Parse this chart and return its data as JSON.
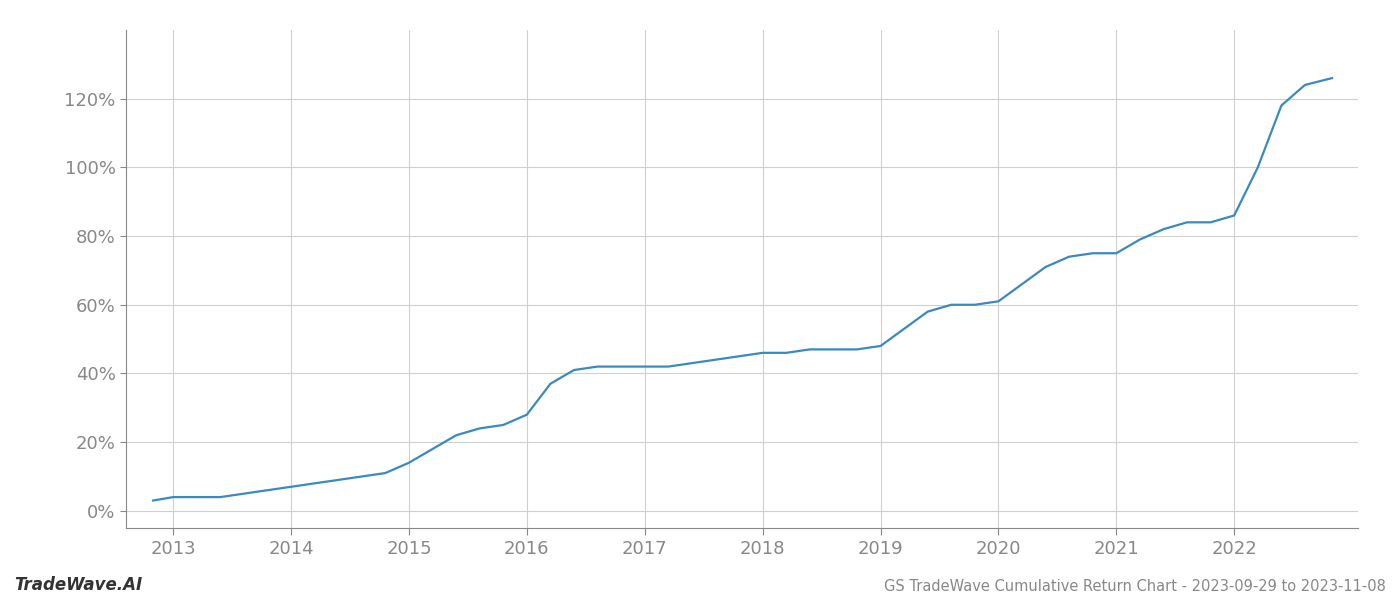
{
  "title": "GS TradeWave Cumulative Return Chart - 2023-09-29 to 2023-11-08",
  "watermark": "TradeWave.AI",
  "line_color": "#3a8abf",
  "background_color": "#ffffff",
  "grid_color": "#d0d0d0",
  "x_years": [
    2013,
    2014,
    2015,
    2016,
    2017,
    2018,
    2019,
    2020,
    2021,
    2022
  ],
  "x_data": [
    2012.83,
    2013.0,
    2013.2,
    2013.4,
    2013.6,
    2013.8,
    2014.0,
    2014.2,
    2014.4,
    2014.6,
    2014.8,
    2015.0,
    2015.2,
    2015.4,
    2015.6,
    2015.8,
    2016.0,
    2016.2,
    2016.4,
    2016.6,
    2016.8,
    2017.0,
    2017.2,
    2017.4,
    2017.6,
    2017.8,
    2018.0,
    2018.2,
    2018.4,
    2018.6,
    2018.8,
    2019.0,
    2019.2,
    2019.4,
    2019.6,
    2019.8,
    2020.0,
    2020.2,
    2020.4,
    2020.6,
    2020.8,
    2021.0,
    2021.2,
    2021.4,
    2021.6,
    2021.8,
    2022.0,
    2022.2,
    2022.4,
    2022.6,
    2022.83
  ],
  "y_data": [
    3,
    4,
    4,
    4,
    5,
    6,
    7,
    8,
    9,
    10,
    11,
    14,
    18,
    22,
    24,
    25,
    28,
    37,
    41,
    42,
    42,
    42,
    42,
    43,
    44,
    45,
    46,
    46,
    47,
    47,
    47,
    48,
    53,
    58,
    60,
    60,
    61,
    66,
    71,
    74,
    75,
    75,
    79,
    82,
    84,
    84,
    86,
    100,
    118,
    124,
    126
  ],
  "ylim": [
    -5,
    140
  ],
  "yticks": [
    0,
    20,
    40,
    60,
    80,
    100,
    120
  ],
  "xlim": [
    2012.6,
    2023.05
  ],
  "title_fontsize": 10.5,
  "watermark_fontsize": 12,
  "tick_fontsize": 13,
  "line_width": 1.6
}
